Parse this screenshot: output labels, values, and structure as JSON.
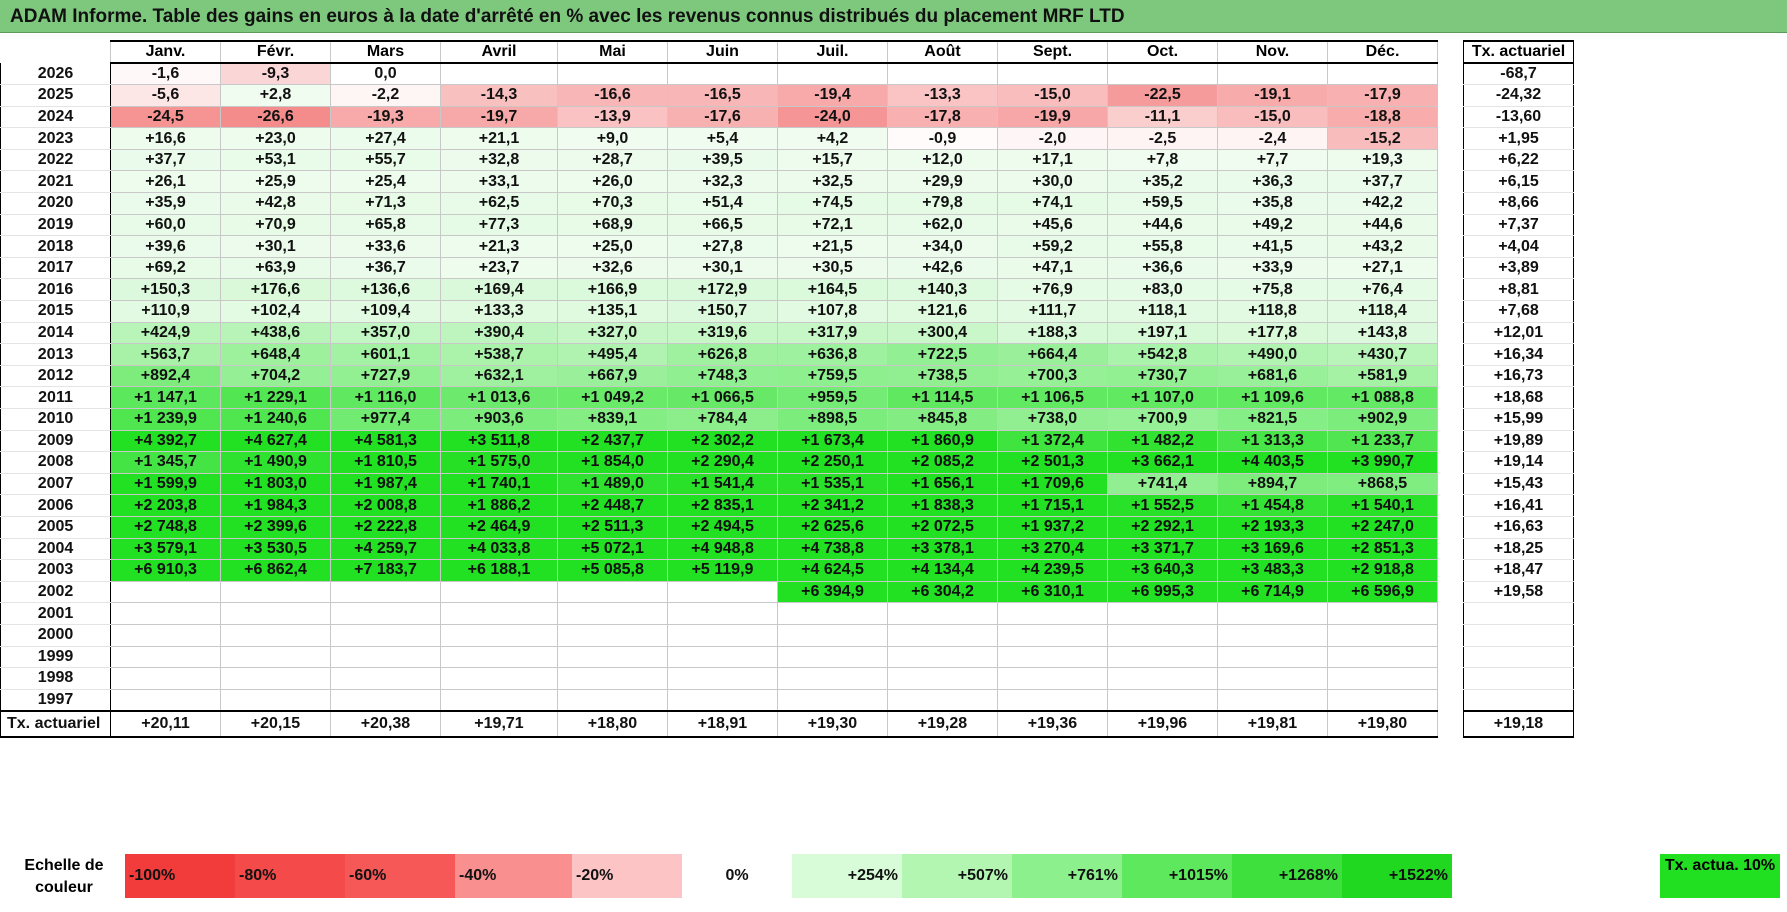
{
  "title": "ADAM Informe. Table des gains en euros à la date d'arrêté en % avec les revenus connus distribués du placement MRF LTD",
  "months": [
    "Janv.",
    "Févr.",
    "Mars",
    "Avril",
    "Mai",
    "Juin",
    "Juil.",
    "Août",
    "Sept.",
    "Oct.",
    "Nov.",
    "Déc."
  ],
  "ta_header": "Tx. actuariel",
  "rows": [
    {
      "year": "2026",
      "values": [
        "-1,6",
        "-9,3",
        "0,0",
        "",
        "",
        "",
        "",
        "",
        "",
        "",
        "",
        ""
      ],
      "ta": "-68,7"
    },
    {
      "year": "2025",
      "values": [
        "-5,6",
        "+2,8",
        "-2,2",
        "-14,3",
        "-16,6",
        "-16,5",
        "-19,4",
        "-13,3",
        "-15,0",
        "-22,5",
        "-19,1",
        "-17,9"
      ],
      "ta": "-24,32"
    },
    {
      "year": "2024",
      "values": [
        "-24,5",
        "-26,6",
        "-19,3",
        "-19,7",
        "-13,9",
        "-17,6",
        "-24,0",
        "-17,8",
        "-19,9",
        "-11,1",
        "-15,0",
        "-18,8"
      ],
      "ta": "-13,60"
    },
    {
      "year": "2023",
      "values": [
        "+16,6",
        "+23,0",
        "+27,4",
        "+21,1",
        "+9,0",
        "+5,4",
        "+4,2",
        "-0,9",
        "-2,0",
        "-2,5",
        "-2,4",
        "-15,2"
      ],
      "ta": "+1,95"
    },
    {
      "year": "2022",
      "values": [
        "+37,7",
        "+53,1",
        "+55,7",
        "+32,8",
        "+28,7",
        "+39,5",
        "+15,7",
        "+12,0",
        "+17,1",
        "+7,8",
        "+7,7",
        "+19,3"
      ],
      "ta": "+6,22"
    },
    {
      "year": "2021",
      "values": [
        "+26,1",
        "+25,9",
        "+25,4",
        "+33,1",
        "+26,0",
        "+32,3",
        "+32,5",
        "+29,9",
        "+30,0",
        "+35,2",
        "+36,3",
        "+37,7"
      ],
      "ta": "+6,15"
    },
    {
      "year": "2020",
      "values": [
        "+35,9",
        "+42,8",
        "+71,3",
        "+62,5",
        "+70,3",
        "+51,4",
        "+74,5",
        "+79,8",
        "+74,1",
        "+59,5",
        "+35,8",
        "+42,2"
      ],
      "ta": "+8,66"
    },
    {
      "year": "2019",
      "values": [
        "+60,0",
        "+70,9",
        "+65,8",
        "+77,3",
        "+68,9",
        "+66,5",
        "+72,1",
        "+62,0",
        "+45,6",
        "+44,6",
        "+49,2",
        "+44,6"
      ],
      "ta": "+7,37"
    },
    {
      "year": "2018",
      "values": [
        "+39,6",
        "+30,1",
        "+33,6",
        "+21,3",
        "+25,0",
        "+27,8",
        "+21,5",
        "+34,0",
        "+59,2",
        "+55,8",
        "+41,5",
        "+43,2"
      ],
      "ta": "+4,04"
    },
    {
      "year": "2017",
      "values": [
        "+69,2",
        "+63,9",
        "+36,7",
        "+23,7",
        "+32,6",
        "+30,1",
        "+30,5",
        "+42,6",
        "+47,1",
        "+36,6",
        "+33,9",
        "+27,1"
      ],
      "ta": "+3,89"
    },
    {
      "year": "2016",
      "values": [
        "+150,3",
        "+176,6",
        "+136,6",
        "+169,4",
        "+166,9",
        "+172,9",
        "+164,5",
        "+140,3",
        "+76,9",
        "+83,0",
        "+75,8",
        "+76,4"
      ],
      "ta": "+8,81"
    },
    {
      "year": "2015",
      "values": [
        "+110,9",
        "+102,4",
        "+109,4",
        "+133,3",
        "+135,1",
        "+150,7",
        "+107,8",
        "+121,6",
        "+111,7",
        "+118,1",
        "+118,8",
        "+118,4"
      ],
      "ta": "+7,68"
    },
    {
      "year": "2014",
      "values": [
        "+424,9",
        "+438,6",
        "+357,0",
        "+390,4",
        "+327,0",
        "+319,6",
        "+317,9",
        "+300,4",
        "+188,3",
        "+197,1",
        "+177,8",
        "+143,8"
      ],
      "ta": "+12,01"
    },
    {
      "year": "2013",
      "values": [
        "+563,7",
        "+648,4",
        "+601,1",
        "+538,7",
        "+495,4",
        "+626,8",
        "+636,8",
        "+722,5",
        "+664,4",
        "+542,8",
        "+490,0",
        "+430,7"
      ],
      "ta": "+16,34"
    },
    {
      "year": "2012",
      "values": [
        "+892,4",
        "+704,2",
        "+727,9",
        "+632,1",
        "+667,9",
        "+748,3",
        "+759,5",
        "+738,5",
        "+700,3",
        "+730,7",
        "+681,6",
        "+581,9"
      ],
      "ta": "+16,73"
    },
    {
      "year": "2011",
      "values": [
        "+1 147,1",
        "+1 229,1",
        "+1 116,0",
        "+1 013,6",
        "+1 049,2",
        "+1 066,5",
        "+959,5",
        "+1 114,5",
        "+1 106,5",
        "+1 107,0",
        "+1 109,6",
        "+1 088,8"
      ],
      "ta": "+18,68"
    },
    {
      "year": "2010",
      "values": [
        "+1 239,9",
        "+1 240,6",
        "+977,4",
        "+903,6",
        "+839,1",
        "+784,4",
        "+898,5",
        "+845,8",
        "+738,0",
        "+700,9",
        "+821,5",
        "+902,9"
      ],
      "ta": "+15,99"
    },
    {
      "year": "2009",
      "values": [
        "+4 392,7",
        "+4 627,4",
        "+4 581,3",
        "+3 511,8",
        "+2 437,7",
        "+2 302,2",
        "+1 673,4",
        "+1 860,9",
        "+1 372,4",
        "+1 482,2",
        "+1 313,3",
        "+1 233,7"
      ],
      "ta": "+19,89"
    },
    {
      "year": "2008",
      "values": [
        "+1 345,7",
        "+1 490,9",
        "+1 810,5",
        "+1 575,0",
        "+1 854,0",
        "+2 290,4",
        "+2 250,1",
        "+2 085,2",
        "+2 501,3",
        "+3 662,1",
        "+4 403,5",
        "+3 990,7"
      ],
      "ta": "+19,14"
    },
    {
      "year": "2007",
      "values": [
        "+1 599,9",
        "+1 803,0",
        "+1 987,4",
        "+1 740,1",
        "+1 489,0",
        "+1 541,4",
        "+1 535,1",
        "+1 656,1",
        "+1 709,6",
        "+741,4",
        "+894,7",
        "+868,5"
      ],
      "ta": "+15,43"
    },
    {
      "year": "2006",
      "values": [
        "+2 203,8",
        "+1 984,3",
        "+2 008,8",
        "+1 886,2",
        "+2 448,7",
        "+2 835,1",
        "+2 341,2",
        "+1 838,3",
        "+1 715,1",
        "+1 552,5",
        "+1 454,8",
        "+1 540,1"
      ],
      "ta": "+16,41"
    },
    {
      "year": "2005",
      "values": [
        "+2 748,8",
        "+2 399,6",
        "+2 222,8",
        "+2 464,9",
        "+2 511,3",
        "+2 494,5",
        "+2 625,6",
        "+2 072,5",
        "+1 937,2",
        "+2 292,1",
        "+2 193,3",
        "+2 247,0"
      ],
      "ta": "+16,63"
    },
    {
      "year": "2004",
      "values": [
        "+3 579,1",
        "+3 530,5",
        "+4 259,7",
        "+4 033,8",
        "+5 072,1",
        "+4 948,8",
        "+4 738,8",
        "+3 378,1",
        "+3 270,4",
        "+3 371,7",
        "+3 169,6",
        "+2 851,3"
      ],
      "ta": "+18,25"
    },
    {
      "year": "2003",
      "values": [
        "+6 910,3",
        "+6 862,4",
        "+7 183,7",
        "+6 188,1",
        "+5 085,8",
        "+5 119,9",
        "+4 624,5",
        "+4 134,4",
        "+4 239,5",
        "+3 640,3",
        "+3 483,3",
        "+2 918,8"
      ],
      "ta": "+18,47"
    },
    {
      "year": "2002",
      "values": [
        "",
        "",
        "",
        "",
        "",
        "",
        "+6 394,9",
        "+6 304,2",
        "+6 310,1",
        "+6 995,3",
        "+6 714,9",
        "+6 596,9"
      ],
      "ta": "+19,58"
    },
    {
      "year": "2001",
      "values": [
        "",
        "",
        "",
        "",
        "",
        "",
        "",
        "",
        "",
        "",
        "",
        ""
      ],
      "ta": ""
    },
    {
      "year": "2000",
      "values": [
        "",
        "",
        "",
        "",
        "",
        "",
        "",
        "",
        "",
        "",
        "",
        ""
      ],
      "ta": ""
    },
    {
      "year": "1999",
      "values": [
        "",
        "",
        "",
        "",
        "",
        "",
        "",
        "",
        "",
        "",
        "",
        ""
      ],
      "ta": ""
    },
    {
      "year": "1998",
      "values": [
        "",
        "",
        "",
        "",
        "",
        "",
        "",
        "",
        "",
        "",
        "",
        ""
      ],
      "ta": ""
    },
    {
      "year": "1997",
      "values": [
        "",
        "",
        "",
        "",
        "",
        "",
        "",
        "",
        "",
        "",
        "",
        ""
      ],
      "ta": ""
    }
  ],
  "summary": {
    "label": "Tx. actuariel",
    "values": [
      "+20,11",
      "+20,15",
      "+20,38",
      "+19,71",
      "+18,80",
      "+18,91",
      "+19,30",
      "+19,28",
      "+19,36",
      "+19,96",
      "+19,81",
      "+19,80"
    ],
    "total": "+19,18"
  },
  "scale": {
    "label": "Echelle de couleur",
    "items": [
      {
        "text": "-100%",
        "color": "#f23c3c"
      },
      {
        "text": "-80%",
        "color": "#f44a4a"
      },
      {
        "text": "-60%",
        "color": "#f65858"
      },
      {
        "text": "-40%",
        "color": "#f98f8f"
      },
      {
        "text": "-20%",
        "color": "#fcc4c4"
      },
      {
        "text": "0%",
        "color": "#ffffff"
      },
      {
        "text": "+254%",
        "color": "#d8fbd8"
      },
      {
        "text": "+507%",
        "color": "#b2f6b2"
      },
      {
        "text": "+761%",
        "color": "#8cf08c"
      },
      {
        "text": "+1015%",
        "color": "#5ee85e"
      },
      {
        "text": "+1268%",
        "color": "#3ee03e"
      },
      {
        "text": "+1522%",
        "color": "#21d821"
      }
    ],
    "ta_label": "Tx. actua. 10%",
    "ta_color": "#21e021"
  },
  "colors": {
    "title_bg": "#7ec87e",
    "neg_light": "#fde6e6",
    "neg_mid": "#f9b4b4",
    "neg_strong": "#f58f8f",
    "pos_bright": "#16e016"
  }
}
